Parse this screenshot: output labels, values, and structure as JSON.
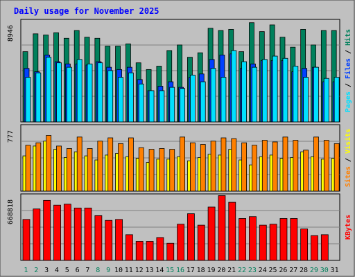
{
  "title": "Daily usage for November 2025",
  "colors": {
    "background": "#c0c0c0",
    "title": "#0000ff",
    "hits": "#00805c",
    "files": "#0040ff",
    "pages": "#00e0ff",
    "visits": "#ffff00",
    "sites": "#ff8000",
    "kbytes": "#ff0000"
  },
  "chart_data": [
    {
      "type": "bar",
      "title": "Daily usage for November 2025",
      "max_label": "8946",
      "legend": [
        "Pages",
        "Files",
        "Hits"
      ],
      "categories": [
        "1",
        "2",
        "3",
        "4",
        "5",
        "6",
        "7",
        "8",
        "9",
        "10",
        "11",
        "12",
        "13",
        "14",
        "15",
        "16",
        "17",
        "18",
        "19",
        "20",
        "21",
        "22",
        "23",
        "24",
        "25",
        "26",
        "27",
        "28",
        "29",
        "30",
        "31"
      ],
      "weekend_days": [
        "1",
        "2",
        "8",
        "9",
        "15",
        "16",
        "22",
        "23",
        "29",
        "30"
      ],
      "ylim": [
        0,
        8946
      ],
      "series": [
        {
          "name": "Hits",
          "values": [
            6300,
            7900,
            7800,
            8000,
            7500,
            8200,
            7600,
            7500,
            6800,
            6800,
            7000,
            5300,
            4700,
            5000,
            6400,
            6900,
            5800,
            6200,
            8400,
            8200,
            8300,
            6300,
            8900,
            8100,
            8700,
            7600,
            6700,
            8300,
            6900,
            8200,
            8200
          ]
        },
        {
          "name": "Files",
          "values": [
            4800,
            4500,
            6000,
            5400,
            5200,
            5200,
            5100,
            5400,
            4900,
            4700,
            4900,
            3800,
            2800,
            3200,
            3600,
            3100,
            4000,
            4300,
            5600,
            6000,
            6100,
            4800,
            5200,
            5500,
            5500,
            5500,
            4500,
            4800,
            4900,
            3600,
            3600
          ]
        },
        {
          "name": "Pages",
          "values": [
            4000,
            4400,
            5800,
            5300,
            4900,
            5600,
            5200,
            5300,
            4600,
            4000,
            4400,
            3400,
            2800,
            2800,
            3100,
            3000,
            4200,
            3600,
            4800,
            4000,
            6400,
            5400,
            4900,
            5600,
            5900,
            5700,
            5000,
            4000,
            4900,
            3900,
            4000
          ]
        }
      ]
    },
    {
      "type": "bar",
      "max_label": "777",
      "legend": [
        "Visits",
        "Sites"
      ],
      "ylim": [
        0,
        777
      ],
      "series": [
        {
          "name": "Visits",
          "values": [
            430,
            550,
            610,
            510,
            410,
            480,
            430,
            380,
            440,
            460,
            420,
            400,
            350,
            390,
            390,
            420,
            370,
            410,
            450,
            440,
            510,
            380,
            320,
            420,
            440,
            400,
            410,
            480,
            420,
            390,
            400
          ]
        },
        {
          "name": "Sites",
          "values": [
            560,
            590,
            680,
            550,
            520,
            660,
            520,
            610,
            650,
            580,
            650,
            530,
            510,
            520,
            510,
            660,
            590,
            570,
            610,
            650,
            640,
            590,
            560,
            620,
            600,
            660,
            620,
            500,
            660,
            620,
            580
          ]
        }
      ]
    },
    {
      "type": "bar",
      "max_label": "668818",
      "legend": [
        "KBytes"
      ],
      "ylim": [
        0,
        668818
      ],
      "series": [
        {
          "name": "KBytes",
          "values": [
            430000,
            540000,
            630000,
            580000,
            590000,
            550000,
            550000,
            470000,
            420000,
            430000,
            270000,
            200000,
            200000,
            240000,
            180000,
            380000,
            490000,
            370000,
            560000,
            680000,
            610000,
            440000,
            460000,
            370000,
            380000,
            440000,
            440000,
            330000,
            260000,
            270000,
            0
          ]
        }
      ]
    }
  ]
}
